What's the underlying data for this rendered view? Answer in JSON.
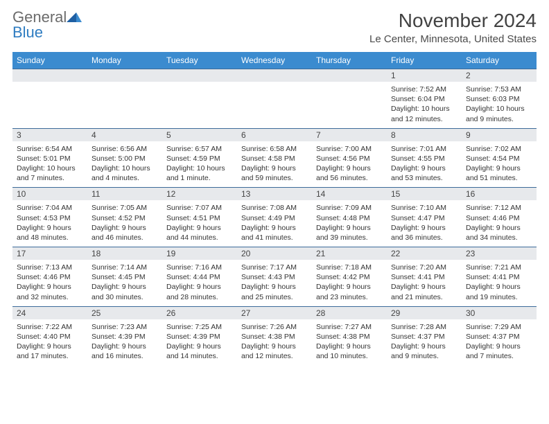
{
  "logo": {
    "text1": "General",
    "text2": "Blue",
    "color1": "#6b6b6b",
    "color2": "#2e7cc1"
  },
  "title": "November 2024",
  "location": "Le Center, Minnesota, United States",
  "colors": {
    "header_bg": "#3b8bcf",
    "header_text": "#ffffff",
    "datebar_bg": "#e7e9ec",
    "border": "#3b6a99",
    "body_text": "#333333",
    "title_text": "#424242"
  },
  "day_names": [
    "Sunday",
    "Monday",
    "Tuesday",
    "Wednesday",
    "Thursday",
    "Friday",
    "Saturday"
  ],
  "weeks": [
    {
      "dates": [
        "",
        "",
        "",
        "",
        "",
        "1",
        "2"
      ],
      "cells": [
        null,
        null,
        null,
        null,
        null,
        {
          "sunrise": "Sunrise: 7:52 AM",
          "sunset": "Sunset: 6:04 PM",
          "daylight": "Daylight: 10 hours and 12 minutes."
        },
        {
          "sunrise": "Sunrise: 7:53 AM",
          "sunset": "Sunset: 6:03 PM",
          "daylight": "Daylight: 10 hours and 9 minutes."
        }
      ]
    },
    {
      "dates": [
        "3",
        "4",
        "5",
        "6",
        "7",
        "8",
        "9"
      ],
      "cells": [
        {
          "sunrise": "Sunrise: 6:54 AM",
          "sunset": "Sunset: 5:01 PM",
          "daylight": "Daylight: 10 hours and 7 minutes."
        },
        {
          "sunrise": "Sunrise: 6:56 AM",
          "sunset": "Sunset: 5:00 PM",
          "daylight": "Daylight: 10 hours and 4 minutes."
        },
        {
          "sunrise": "Sunrise: 6:57 AM",
          "sunset": "Sunset: 4:59 PM",
          "daylight": "Daylight: 10 hours and 1 minute."
        },
        {
          "sunrise": "Sunrise: 6:58 AM",
          "sunset": "Sunset: 4:58 PM",
          "daylight": "Daylight: 9 hours and 59 minutes."
        },
        {
          "sunrise": "Sunrise: 7:00 AM",
          "sunset": "Sunset: 4:56 PM",
          "daylight": "Daylight: 9 hours and 56 minutes."
        },
        {
          "sunrise": "Sunrise: 7:01 AM",
          "sunset": "Sunset: 4:55 PM",
          "daylight": "Daylight: 9 hours and 53 minutes."
        },
        {
          "sunrise": "Sunrise: 7:02 AM",
          "sunset": "Sunset: 4:54 PM",
          "daylight": "Daylight: 9 hours and 51 minutes."
        }
      ]
    },
    {
      "dates": [
        "10",
        "11",
        "12",
        "13",
        "14",
        "15",
        "16"
      ],
      "cells": [
        {
          "sunrise": "Sunrise: 7:04 AM",
          "sunset": "Sunset: 4:53 PM",
          "daylight": "Daylight: 9 hours and 48 minutes."
        },
        {
          "sunrise": "Sunrise: 7:05 AM",
          "sunset": "Sunset: 4:52 PM",
          "daylight": "Daylight: 9 hours and 46 minutes."
        },
        {
          "sunrise": "Sunrise: 7:07 AM",
          "sunset": "Sunset: 4:51 PM",
          "daylight": "Daylight: 9 hours and 44 minutes."
        },
        {
          "sunrise": "Sunrise: 7:08 AM",
          "sunset": "Sunset: 4:49 PM",
          "daylight": "Daylight: 9 hours and 41 minutes."
        },
        {
          "sunrise": "Sunrise: 7:09 AM",
          "sunset": "Sunset: 4:48 PM",
          "daylight": "Daylight: 9 hours and 39 minutes."
        },
        {
          "sunrise": "Sunrise: 7:10 AM",
          "sunset": "Sunset: 4:47 PM",
          "daylight": "Daylight: 9 hours and 36 minutes."
        },
        {
          "sunrise": "Sunrise: 7:12 AM",
          "sunset": "Sunset: 4:46 PM",
          "daylight": "Daylight: 9 hours and 34 minutes."
        }
      ]
    },
    {
      "dates": [
        "17",
        "18",
        "19",
        "20",
        "21",
        "22",
        "23"
      ],
      "cells": [
        {
          "sunrise": "Sunrise: 7:13 AM",
          "sunset": "Sunset: 4:46 PM",
          "daylight": "Daylight: 9 hours and 32 minutes."
        },
        {
          "sunrise": "Sunrise: 7:14 AM",
          "sunset": "Sunset: 4:45 PM",
          "daylight": "Daylight: 9 hours and 30 minutes."
        },
        {
          "sunrise": "Sunrise: 7:16 AM",
          "sunset": "Sunset: 4:44 PM",
          "daylight": "Daylight: 9 hours and 28 minutes."
        },
        {
          "sunrise": "Sunrise: 7:17 AM",
          "sunset": "Sunset: 4:43 PM",
          "daylight": "Daylight: 9 hours and 25 minutes."
        },
        {
          "sunrise": "Sunrise: 7:18 AM",
          "sunset": "Sunset: 4:42 PM",
          "daylight": "Daylight: 9 hours and 23 minutes."
        },
        {
          "sunrise": "Sunrise: 7:20 AM",
          "sunset": "Sunset: 4:41 PM",
          "daylight": "Daylight: 9 hours and 21 minutes."
        },
        {
          "sunrise": "Sunrise: 7:21 AM",
          "sunset": "Sunset: 4:41 PM",
          "daylight": "Daylight: 9 hours and 19 minutes."
        }
      ]
    },
    {
      "dates": [
        "24",
        "25",
        "26",
        "27",
        "28",
        "29",
        "30"
      ],
      "cells": [
        {
          "sunrise": "Sunrise: 7:22 AM",
          "sunset": "Sunset: 4:40 PM",
          "daylight": "Daylight: 9 hours and 17 minutes."
        },
        {
          "sunrise": "Sunrise: 7:23 AM",
          "sunset": "Sunset: 4:39 PM",
          "daylight": "Daylight: 9 hours and 16 minutes."
        },
        {
          "sunrise": "Sunrise: 7:25 AM",
          "sunset": "Sunset: 4:39 PM",
          "daylight": "Daylight: 9 hours and 14 minutes."
        },
        {
          "sunrise": "Sunrise: 7:26 AM",
          "sunset": "Sunset: 4:38 PM",
          "daylight": "Daylight: 9 hours and 12 minutes."
        },
        {
          "sunrise": "Sunrise: 7:27 AM",
          "sunset": "Sunset: 4:38 PM",
          "daylight": "Daylight: 9 hours and 10 minutes."
        },
        {
          "sunrise": "Sunrise: 7:28 AM",
          "sunset": "Sunset: 4:37 PM",
          "daylight": "Daylight: 9 hours and 9 minutes."
        },
        {
          "sunrise": "Sunrise: 7:29 AM",
          "sunset": "Sunset: 4:37 PM",
          "daylight": "Daylight: 9 hours and 7 minutes."
        }
      ]
    }
  ]
}
